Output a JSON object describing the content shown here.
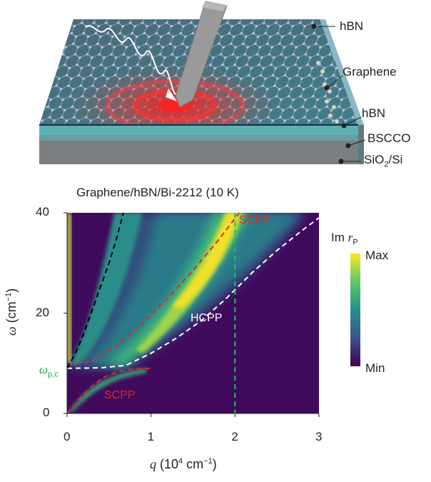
{
  "figure": {
    "layer_labels": {
      "top_hbn": "hBN",
      "graphene": "Graphene",
      "mid_hbn": "hBN",
      "bscco": "BSCCO",
      "substrate": "SiO2/Si"
    },
    "plot_title": "Graphene/hBN/Bi-2212 (10 K)",
    "mode_labels": {
      "scpp_upper": "SCPP",
      "scpp_lower": "SCPP",
      "hcpp": "HCPP"
    },
    "y_axis": {
      "symbol": "ω",
      "unit": "(cm−1)",
      "plasma_freq_symbol": "ω",
      "plasma_freq_subscript": "p,c",
      "ticks": [
        "0",
        "20",
        "40"
      ]
    },
    "x_axis": {
      "symbol": "q",
      "unit": "(104 cm−1)",
      "ticks": [
        "0",
        "1",
        "2",
        "3"
      ]
    },
    "colorbar": {
      "title": "Im r",
      "title_subscript": "P",
      "max_label": "Max",
      "min_label": "Min"
    },
    "colors": {
      "background_mode": "#3a0f5e",
      "scpp_curve": "#e02828",
      "hcpp_curve": "#ffffff",
      "light_line": "#000000",
      "cutoff_line": "#1fbf5f",
      "plasma_label": "#1fa050",
      "scpp_label": "#e02828"
    }
  },
  "chart_data": {
    "type": "heatmap",
    "title": "Graphene/hBN/Bi-2212 (10 K)",
    "xlabel": "q (10^4 cm^-1)",
    "ylabel": "ω (cm^-1)",
    "xlim": [
      0,
      3
    ],
    "ylim": [
      0,
      40
    ],
    "x_ticks": [
      0,
      1,
      2,
      3
    ],
    "y_ticks": [
      0,
      20,
      40
    ],
    "colorbar": {
      "label": "Im rP",
      "range": [
        "Min",
        "Max"
      ],
      "colormap": "viridis"
    },
    "curves": [
      {
        "name": "SCPP",
        "style": "red dashed",
        "x": [
          0.0,
          0.3,
          0.6,
          0.9,
          1.2,
          1.5,
          1.8,
          2.05
        ],
        "y": [
          9.5,
          10.5,
          13.5,
          18.0,
          23.0,
          28.5,
          34.5,
          40.0
        ]
      },
      {
        "name": "HCPP",
        "style": "white dashed",
        "x": [
          0.0,
          0.4,
          0.7,
          1.0,
          1.3,
          1.6,
          1.9,
          2.2,
          2.5,
          2.8,
          3.0
        ],
        "y": [
          9.0,
          9.1,
          9.6,
          12.0,
          15.0,
          18.5,
          23.0,
          28.0,
          32.5,
          36.5,
          39.0
        ]
      },
      {
        "name": "SCPP",
        "style": "red dashed (low branch)",
        "x": [
          0.0,
          0.15,
          0.3,
          0.45,
          0.6,
          0.8,
          1.0
        ],
        "y": [
          0.0,
          3.0,
          5.5,
          7.3,
          8.3,
          8.9,
          9.0
        ]
      },
      {
        "name": "",
        "style": "black dashed (light line)",
        "x": [
          0.0,
          0.1,
          0.2,
          0.35,
          0.5,
          0.6,
          0.67
        ],
        "y": [
          9.0,
          12.0,
          16.0,
          23.0,
          30.0,
          35.5,
          40.0
        ]
      }
    ],
    "vertical_lines": [
      {
        "x": 2.0,
        "style": "green dashed"
      }
    ],
    "annotations": [
      "SCPP",
      "HCPP",
      "SCPP",
      "ωp,c"
    ]
  }
}
